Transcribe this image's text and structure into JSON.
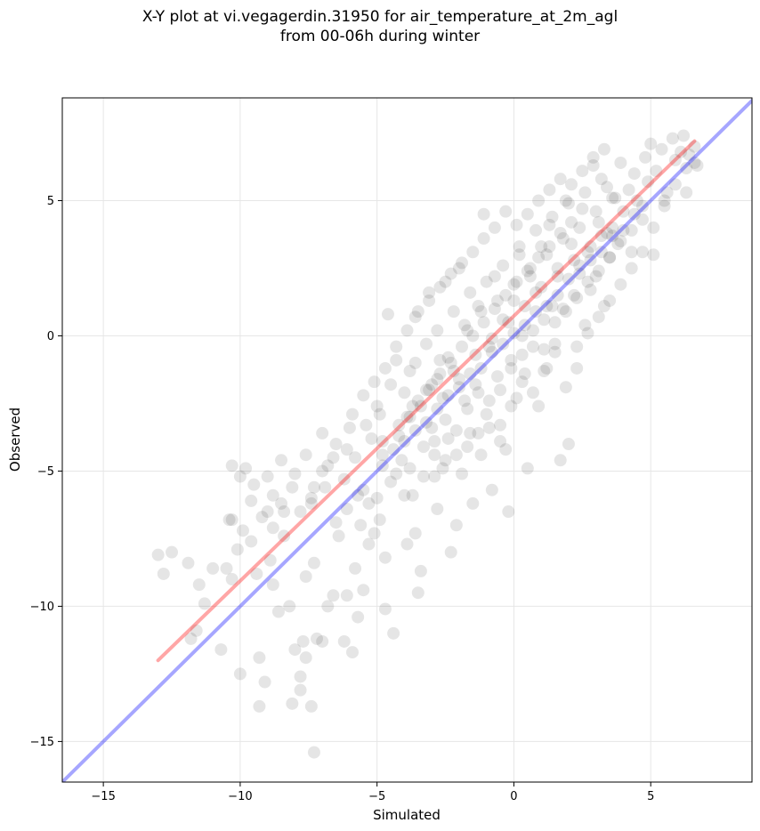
{
  "chart_data": {
    "type": "scatter",
    "title_line1": "X-Y plot at vi.vegagerdin.31950 for air_temperature_at_2m_agl",
    "title_line2": "from 00-06h during winter",
    "xlabel": "Simulated",
    "ylabel": "Observed",
    "xlim": [
      -16.5,
      8.7
    ],
    "ylim": [
      -16.5,
      8.8
    ],
    "xticks": [
      -15,
      -10,
      -5,
      0,
      5
    ],
    "yticks": [
      -15,
      -10,
      -5,
      0,
      5
    ],
    "xtick_labels": [
      "−15",
      "−10",
      "−5",
      "0",
      "5"
    ],
    "ytick_labels": [
      "−15",
      "−10",
      "−5",
      "0",
      "5"
    ],
    "grid": true,
    "reference_line": {
      "name": "1:1",
      "color": "#0000ff",
      "from": [
        -16.5,
        -16.5
      ],
      "to": [
        8.7,
        8.7
      ]
    },
    "fit_line": {
      "color": "#ff0000",
      "from": [
        -13,
        -12
      ],
      "to": [
        6.6,
        7.2
      ]
    },
    "point_color": "#000000",
    "points": [
      [
        -13.0,
        -8.1
      ],
      [
        -12.8,
        -8.8
      ],
      [
        -12.5,
        -8.0
      ],
      [
        -11.9,
        -8.4
      ],
      [
        -11.5,
        -9.2
      ],
      [
        -11.3,
        -9.9
      ],
      [
        -11.8,
        -11.2
      ],
      [
        -11.6,
        -10.9
      ],
      [
        -11.0,
        -8.6
      ],
      [
        -10.7,
        -11.6
      ],
      [
        -10.5,
        -8.6
      ],
      [
        -10.3,
        -6.8
      ],
      [
        -10.3,
        -9.0
      ],
      [
        -10.1,
        -7.9
      ],
      [
        -10.0,
        -12.5
      ],
      [
        -10.3,
        -4.8
      ],
      [
        -10.0,
        -5.2
      ],
      [
        -9.8,
        -4.9
      ],
      [
        -9.6,
        -7.6
      ],
      [
        -9.5,
        -5.5
      ],
      [
        -9.3,
        -11.9
      ],
      [
        -9.3,
        -13.7
      ],
      [
        -9.1,
        -12.8
      ],
      [
        -9.0,
        -6.5
      ],
      [
        -8.8,
        -5.9
      ],
      [
        -8.8,
        -9.2
      ],
      [
        -8.6,
        -10.2
      ],
      [
        -8.5,
        -6.2
      ],
      [
        -8.4,
        -7.4
      ],
      [
        -8.2,
        -10.0
      ],
      [
        -8.1,
        -5.6
      ],
      [
        -8.1,
        -13.6
      ],
      [
        -8.0,
        -11.6
      ],
      [
        -7.8,
        -12.6
      ],
      [
        -7.8,
        -13.1
      ],
      [
        -7.7,
        -11.3
      ],
      [
        -7.6,
        -11.9
      ],
      [
        -7.6,
        -8.9
      ],
      [
        -7.4,
        -6.2
      ],
      [
        -7.4,
        -13.7
      ],
      [
        -7.3,
        -15.4
      ],
      [
        -7.3,
        -8.4
      ],
      [
        -7.2,
        -11.2
      ],
      [
        -7.0,
        -11.3
      ],
      [
        -7.0,
        -5.0
      ],
      [
        -6.8,
        -10.0
      ],
      [
        -6.6,
        -9.6
      ],
      [
        -6.6,
        -4.5
      ],
      [
        -6.4,
        -7.4
      ],
      [
        -6.2,
        -11.3
      ],
      [
        -6.1,
        -9.6
      ],
      [
        -6.1,
        -4.2
      ],
      [
        -5.9,
        -11.7
      ],
      [
        -5.8,
        -8.6
      ],
      [
        -5.7,
        -10.4
      ],
      [
        -5.6,
        -7.0
      ],
      [
        -5.5,
        -9.4
      ],
      [
        -5.4,
        -3.3
      ],
      [
        -5.3,
        -7.7
      ],
      [
        -5.1,
        -7.3
      ],
      [
        -5.0,
        -6.0
      ],
      [
        -4.9,
        -2.9
      ],
      [
        -4.8,
        -3.9
      ],
      [
        -4.7,
        -8.2
      ],
      [
        -4.7,
        -10.1
      ],
      [
        -4.6,
        0.8
      ],
      [
        -4.4,
        -11.0
      ],
      [
        -4.3,
        -5.1
      ],
      [
        -4.3,
        -0.9
      ],
      [
        -4.2,
        -3.3
      ],
      [
        -4.0,
        -5.9
      ],
      [
        -3.9,
        -7.7
      ],
      [
        -3.8,
        -4.9
      ],
      [
        -3.8,
        -1.3
      ],
      [
        -3.7,
        -2.6
      ],
      [
        -3.6,
        0.7
      ],
      [
        -3.6,
        -7.3
      ],
      [
        -3.5,
        -9.5
      ],
      [
        -3.4,
        -8.7
      ],
      [
        -3.3,
        -4.1
      ],
      [
        -3.2,
        -2.0
      ],
      [
        -3.1,
        1.6
      ],
      [
        -3.0,
        -3.4
      ],
      [
        -2.9,
        -5.2
      ],
      [
        -2.8,
        -1.6
      ],
      [
        -2.8,
        -6.4
      ],
      [
        -2.7,
        -0.9
      ],
      [
        -2.6,
        -4.9
      ],
      [
        -2.5,
        2.0
      ],
      [
        -2.4,
        -3.8
      ],
      [
        -2.3,
        -8.0
      ],
      [
        -2.2,
        -1.3
      ],
      [
        -2.1,
        -7.0
      ],
      [
        -2.0,
        2.5
      ],
      [
        -1.9,
        -5.1
      ],
      [
        -1.8,
        -2.4
      ],
      [
        -1.7,
        0.2
      ],
      [
        -1.6,
        -3.6
      ],
      [
        -1.5,
        -6.2
      ],
      [
        -1.4,
        -1.8
      ],
      [
        -1.3,
        1.1
      ],
      [
        -1.2,
        -4.4
      ],
      [
        -1.1,
        4.5
      ],
      [
        -1.0,
        -2.9
      ],
      [
        -0.9,
        -0.4
      ],
      [
        -0.8,
        -5.7
      ],
      [
        -0.7,
        2.2
      ],
      [
        -0.6,
        -1.5
      ],
      [
        -0.5,
        -3.3
      ],
      [
        -0.4,
        0.6
      ],
      [
        -0.3,
        -4.2
      ],
      [
        -0.2,
        -6.5
      ],
      [
        -0.1,
        -0.9
      ],
      [
        0.0,
        1.3
      ],
      [
        0.1,
        -2.3
      ],
      [
        0.2,
        3.0
      ],
      [
        0.3,
        0.0
      ],
      [
        0.4,
        -1.4
      ],
      [
        0.5,
        -4.9
      ],
      [
        0.6,
        2.2
      ],
      [
        0.7,
        -0.4
      ],
      [
        0.8,
        1.6
      ],
      [
        0.9,
        -2.6
      ],
      [
        1.0,
        3.3
      ],
      [
        1.1,
        0.6
      ],
      [
        1.2,
        -1.2
      ],
      [
        1.3,
        4.1
      ],
      [
        1.4,
        1.1
      ],
      [
        1.5,
        -0.3
      ],
      [
        1.6,
        2.5
      ],
      [
        1.7,
        -4.6
      ],
      [
        1.8,
        1.0
      ],
      [
        1.9,
        5.0
      ],
      [
        2.0,
        -4.0
      ],
      [
        2.1,
        3.4
      ],
      [
        2.2,
        1.5
      ],
      [
        2.3,
        -1.2
      ],
      [
        2.4,
        2.6
      ],
      [
        2.5,
        4.7
      ],
      [
        2.6,
        0.4
      ],
      [
        2.7,
        3.1
      ],
      [
        2.8,
        1.7
      ],
      [
        2.9,
        6.3
      ],
      [
        3.0,
        2.2
      ],
      [
        3.1,
        4.2
      ],
      [
        3.2,
        3.7
      ],
      [
        3.3,
        1.1
      ],
      [
        3.4,
        5.5
      ],
      [
        3.5,
        2.9
      ],
      [
        3.6,
        4.0
      ],
      [
        3.7,
        5.1
      ],
      [
        3.8,
        3.4
      ],
      [
        3.9,
        6.4
      ],
      [
        4.0,
        4.6
      ],
      [
        4.2,
        5.4
      ],
      [
        4.3,
        3.1
      ],
      [
        4.4,
        6.0
      ],
      [
        4.5,
        5.0
      ],
      [
        4.7,
        4.8
      ],
      [
        4.8,
        6.6
      ],
      [
        4.9,
        5.7
      ],
      [
        5.0,
        7.1
      ],
      [
        5.1,
        3.0
      ],
      [
        5.2,
        6.1
      ],
      [
        5.4,
        6.9
      ],
      [
        5.5,
        4.8
      ],
      [
        5.6,
        5.3
      ],
      [
        5.8,
        7.3
      ],
      [
        5.9,
        6.5
      ],
      [
        6.1,
        6.8
      ],
      [
        6.2,
        7.4
      ],
      [
        6.3,
        5.3
      ],
      [
        6.4,
        6.7
      ],
      [
        6.6,
        6.4
      ],
      [
        6.6,
        7.0
      ],
      [
        6.7,
        6.3
      ],
      [
        -9.0,
        -5.2
      ],
      [
        -8.5,
        -4.6
      ],
      [
        -8.0,
        -5.1
      ],
      [
        -7.6,
        -4.4
      ],
      [
        -7.3,
        -5.6
      ],
      [
        -7.0,
        -3.6
      ],
      [
        -6.8,
        -4.8
      ],
      [
        -6.5,
        -4.0
      ],
      [
        -6.2,
        -5.3
      ],
      [
        -6.0,
        -3.4
      ],
      [
        -5.8,
        -4.5
      ],
      [
        -5.5,
        -5.7
      ],
      [
        -5.2,
        -3.8
      ],
      [
        -5.0,
        -2.6
      ],
      [
        -4.8,
        -4.4
      ],
      [
        -4.5,
        -1.8
      ],
      [
        -4.2,
        -3.7
      ],
      [
        -4.0,
        -2.1
      ],
      [
        -3.8,
        -3.0
      ],
      [
        -3.6,
        -1.0
      ],
      [
        -3.4,
        -2.6
      ],
      [
        -3.2,
        -0.3
      ],
      [
        -3.0,
        -1.8
      ],
      [
        -2.8,
        0.2
      ],
      [
        -2.6,
        -2.3
      ],
      [
        -2.4,
        -0.8
      ],
      [
        -2.2,
        0.9
      ],
      [
        -2.0,
        -1.6
      ],
      [
        -1.8,
        0.4
      ],
      [
        -1.6,
        1.6
      ],
      [
        -1.4,
        -0.7
      ],
      [
        -1.2,
        0.9
      ],
      [
        -1.0,
        2.0
      ],
      [
        -0.8,
        -0.1
      ],
      [
        -0.6,
        1.3
      ],
      [
        -0.4,
        2.6
      ],
      [
        -0.2,
        0.5
      ],
      [
        0.0,
        1.9
      ],
      [
        0.2,
        3.3
      ],
      [
        0.4,
        1.1
      ],
      [
        0.6,
        2.5
      ],
      [
        0.8,
        3.9
      ],
      [
        1.0,
        1.8
      ],
      [
        1.2,
        3.0
      ],
      [
        1.4,
        4.4
      ],
      [
        1.6,
        2.2
      ],
      [
        1.8,
        3.6
      ],
      [
        2.0,
        4.9
      ],
      [
        2.2,
        2.8
      ],
      [
        2.4,
        4.0
      ],
      [
        2.6,
        5.3
      ],
      [
        2.8,
        3.3
      ],
      [
        3.0,
        4.6
      ],
      [
        3.2,
        5.8
      ],
      [
        3.4,
        3.8
      ],
      [
        3.6,
        5.1
      ],
      [
        -4.8,
        -4.8
      ],
      [
        -4.4,
        -4.2
      ],
      [
        -4.0,
        -3.9
      ],
      [
        -3.6,
        -3.5
      ],
      [
        -3.2,
        -3.2
      ],
      [
        -2.8,
        -2.7
      ],
      [
        -2.4,
        -2.2
      ],
      [
        -2.0,
        -1.9
      ],
      [
        -1.6,
        -1.4
      ],
      [
        -1.2,
        -1.2
      ],
      [
        -0.8,
        -0.6
      ],
      [
        -0.4,
        -0.3
      ],
      [
        0.0,
        0.1
      ],
      [
        0.4,
        0.4
      ],
      [
        0.8,
        0.9
      ],
      [
        1.2,
        1.1
      ],
      [
        1.6,
        1.5
      ],
      [
        2.0,
        2.1
      ],
      [
        2.4,
        2.3
      ],
      [
        2.8,
        2.8
      ],
      [
        3.2,
        3.1
      ],
      [
        3.6,
        3.7
      ],
      [
        4.0,
        3.9
      ],
      [
        4.4,
        4.5
      ],
      [
        -3.9,
        -3.0
      ],
      [
        -3.5,
        -2.4
      ],
      [
        -3.1,
        -2.0
      ],
      [
        -2.7,
        -1.4
      ],
      [
        -2.3,
        -1.0
      ],
      [
        -1.9,
        -0.4
      ],
      [
        -1.5,
        0.0
      ],
      [
        -1.1,
        0.5
      ],
      [
        -0.7,
        1.0
      ],
      [
        -0.3,
        1.5
      ],
      [
        0.1,
        2.0
      ],
      [
        0.5,
        2.4
      ],
      [
        0.9,
        2.9
      ],
      [
        1.3,
        3.3
      ],
      [
        1.7,
        3.8
      ],
      [
        2.1,
        4.2
      ],
      [
        -7.8,
        -6.5
      ],
      [
        -7.4,
        -6.0
      ],
      [
        -6.9,
        -5.6
      ],
      [
        -6.5,
        -6.9
      ],
      [
        -6.1,
        -6.4
      ],
      [
        -5.7,
        -5.9
      ],
      [
        -5.3,
        -6.2
      ],
      [
        -4.9,
        -6.8
      ],
      [
        -4.5,
        -5.4
      ],
      [
        -4.1,
        -4.6
      ],
      [
        -3.7,
        -5.9
      ],
      [
        -3.3,
        -5.2
      ],
      [
        -2.9,
        -3.9
      ],
      [
        -2.5,
        -3.1
      ],
      [
        -2.1,
        -4.4
      ],
      [
        -1.7,
        -2.7
      ],
      [
        -1.3,
        -2.1
      ],
      [
        -0.9,
        -3.4
      ],
      [
        -0.5,
        -2.0
      ],
      [
        -0.1,
        -1.2
      ],
      [
        0.3,
        -0.7
      ],
      [
        0.7,
        0.2
      ],
      [
        1.1,
        -0.5
      ],
      [
        1.5,
        0.5
      ],
      [
        1.9,
        0.9
      ],
      [
        2.3,
        1.4
      ],
      [
        2.7,
        2.0
      ],
      [
        3.1,
        2.4
      ],
      [
        3.5,
        2.9
      ],
      [
        3.9,
        3.5
      ],
      [
        4.3,
        3.9
      ],
      [
        4.7,
        4.3
      ],
      [
        -9.6,
        -6.1
      ],
      [
        -9.2,
        -6.7
      ],
      [
        -8.8,
        -7.1
      ],
      [
        -8.4,
        -6.5
      ],
      [
        -8.9,
        -8.3
      ],
      [
        -9.9,
        -7.2
      ],
      [
        -10.4,
        -6.8
      ],
      [
        -9.4,
        -8.8
      ],
      [
        -5.9,
        -2.9
      ],
      [
        -5.5,
        -2.2
      ],
      [
        -5.1,
        -1.7
      ],
      [
        -4.7,
        -1.2
      ],
      [
        -4.3,
        -0.4
      ],
      [
        -3.9,
        0.2
      ],
      [
        -3.5,
        0.9
      ],
      [
        -3.1,
        1.3
      ],
      [
        -2.7,
        1.8
      ],
      [
        -2.3,
        2.3
      ],
      [
        -1.9,
        2.7
      ],
      [
        -1.5,
        3.1
      ],
      [
        -1.1,
        3.6
      ],
      [
        -0.7,
        4.0
      ],
      [
        -0.3,
        4.6
      ],
      [
        0.1,
        4.1
      ],
      [
        0.5,
        4.5
      ],
      [
        0.9,
        5.0
      ],
      [
        1.3,
        5.4
      ],
      [
        1.7,
        5.8
      ],
      [
        2.1,
        5.6
      ],
      [
        2.5,
        6.1
      ],
      [
        2.9,
        6.6
      ],
      [
        3.3,
        6.9
      ],
      [
        -2.9,
        -4.4
      ],
      [
        -2.5,
        -4.6
      ],
      [
        -2.1,
        -3.5
      ],
      [
        -1.7,
        -4.1
      ],
      [
        -1.3,
        -3.6
      ],
      [
        -0.9,
        -2.4
      ],
      [
        -0.5,
        -3.9
      ],
      [
        -0.1,
        -2.6
      ],
      [
        0.3,
        -1.7
      ],
      [
        0.7,
        -2.1
      ],
      [
        1.1,
        -1.3
      ],
      [
        1.5,
        -0.6
      ],
      [
        1.9,
        -1.9
      ],
      [
        2.3,
        -0.4
      ],
      [
        2.7,
        0.1
      ],
      [
        3.1,
        0.7
      ],
      [
        3.5,
        1.3
      ],
      [
        3.9,
        1.9
      ],
      [
        4.3,
        2.5
      ],
      [
        4.7,
        3.1
      ],
      [
        5.1,
        4.0
      ],
      [
        5.5,
        5.0
      ],
      [
        5.9,
        5.6
      ],
      [
        6.3,
        6.2
      ]
    ]
  }
}
